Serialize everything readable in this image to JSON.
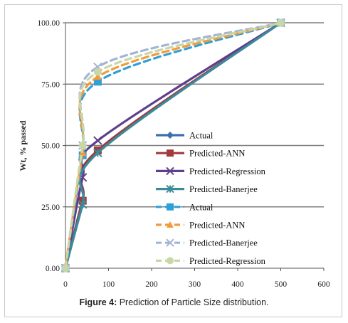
{
  "chart_data": {
    "type": "line",
    "ylabel": "Wt, % passed",
    "xlabel": "",
    "xlim": [
      0,
      600
    ],
    "ylim": [
      0,
      100
    ],
    "x_ticks": [
      "0",
      "100",
      "200",
      "300",
      "400",
      "500",
      "600"
    ],
    "y_ticks": [
      "0.00",
      "25.00",
      "50.00",
      "75.00",
      "100.00"
    ],
    "grid": "horizontal",
    "legend_position": "center-right",
    "series": [
      {
        "name": "Actual",
        "color": "#3c6fb0",
        "style": "solid",
        "marker": "diamond",
        "x": [
          0,
          40,
          75,
          500
        ],
        "y": [
          0,
          28,
          48,
          100
        ]
      },
      {
        "name": "Predicted-ANN",
        "color": "#a03c3c",
        "style": "solid",
        "marker": "square",
        "x": [
          0,
          40,
          75,
          500
        ],
        "y": [
          0,
          27.5,
          48,
          100
        ]
      },
      {
        "name": "Predicted-Regression",
        "color": "#5e3f8c",
        "style": "solid",
        "marker": "x",
        "x": [
          0,
          40,
          75,
          500
        ],
        "y": [
          0,
          37,
          52,
          100
        ]
      },
      {
        "name": "Predicted-Banerjee",
        "color": "#3a8c9c",
        "style": "solid",
        "marker": "star",
        "x": [
          0,
          40,
          75,
          500
        ],
        "y": [
          0,
          26,
          47,
          100
        ]
      },
      {
        "name": "Actual",
        "color": "#2ea0d8",
        "style": "dashed",
        "marker": "square",
        "x": [
          0,
          40,
          75,
          500
        ],
        "y": [
          0,
          46,
          76,
          100
        ]
      },
      {
        "name": "Predicted-ANN",
        "color": "#f39a3c",
        "style": "dashed",
        "marker": "triangle",
        "x": [
          0,
          40,
          75,
          500
        ],
        "y": [
          1,
          47,
          78,
          100
        ]
      },
      {
        "name": "Predicted-Banerjee",
        "color": "#a3b4d6",
        "style": "dashed",
        "marker": "x",
        "x": [
          0,
          40,
          75,
          500
        ],
        "y": [
          0,
          50,
          82,
          100
        ]
      },
      {
        "name": "Predicted-Regression",
        "color": "#c9d6a6",
        "style": "dashed",
        "marker": "circle",
        "x": [
          0,
          40,
          75,
          500
        ],
        "y": [
          0,
          50,
          80,
          100
        ]
      }
    ]
  },
  "caption": {
    "label": "Figure 4:",
    "text": " Prediction of Particle Size distribution."
  }
}
